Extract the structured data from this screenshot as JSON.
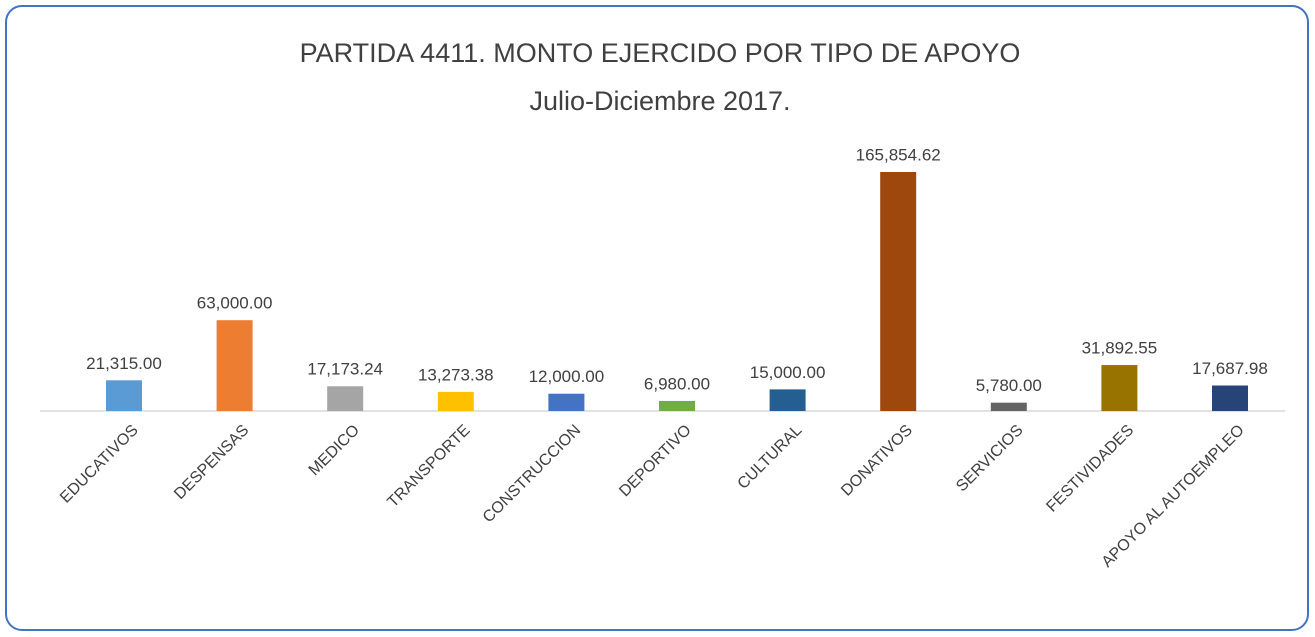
{
  "chart_data": {
    "type": "bar",
    "title": "PARTIDA 4411. MONTO EJERCIDO POR TIPO DE APOYO",
    "subtitle": "Julio-Diciembre 2017.",
    "categories": [
      "EDUCATIVOS",
      "DESPENSAS",
      "MEDICO",
      "TRANSPORTE",
      "CONSTRUCCION",
      "DEPORTIVO",
      "CULTURAL",
      "DONATIVOS",
      "SERVICIOS",
      "FESTIVIDADES",
      "APOYO AL AUTOEMPLEO"
    ],
    "values": [
      21315,
      63000,
      17173.24,
      13273.38,
      12000,
      6980,
      15000,
      165854.62,
      5780,
      31892.55,
      17687.98
    ],
    "value_labels": [
      "21,315.00",
      "63,000.00",
      "17,173.24",
      "13,273.38",
      "12,000.00",
      "6,980.00",
      "15,000.00",
      "165,854.62",
      "5,780.00",
      "31,892.55",
      "17,687.98"
    ],
    "colors": [
      "#5b9bd5",
      "#ed7d31",
      "#a5a5a5",
      "#ffc000",
      "#4472c4",
      "#70ad47",
      "#255e91",
      "#9e480e",
      "#636363",
      "#997300",
      "#264478"
    ]
  }
}
